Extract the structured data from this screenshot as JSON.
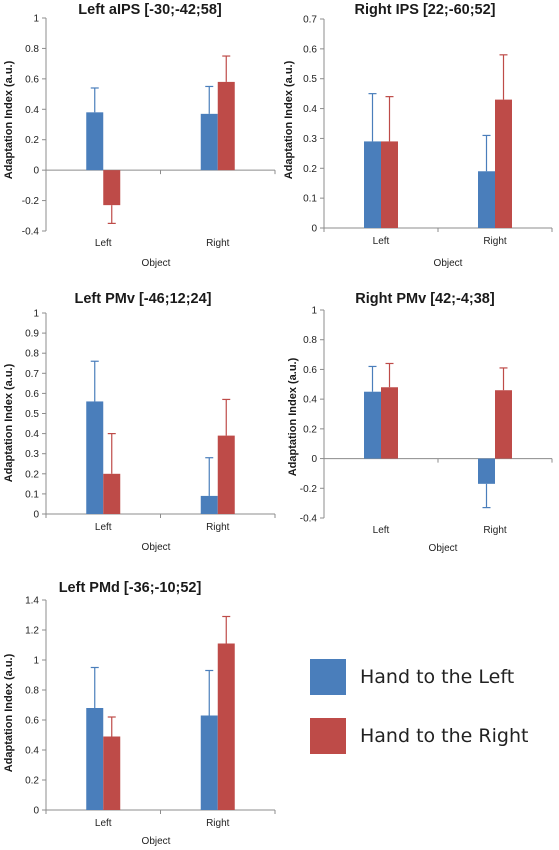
{
  "colors": {
    "left_hand": "#4a7ebb",
    "right_hand": "#be4b48",
    "axis": "#8c8c8c"
  },
  "legend": {
    "items": [
      {
        "label": "Hand to the Left",
        "color": "#4a7ebb"
      },
      {
        "label": "Hand to the Right",
        "color": "#be4b48"
      }
    ]
  },
  "chart_data": [
    {
      "type": "bar",
      "title": "Left aIPS [-30;-42;58]",
      "xlabel": "Object",
      "ylabel": "Adaptation Index (a.u.)",
      "categories": [
        "Left",
        "Right"
      ],
      "ylim": [
        -0.4,
        1
      ],
      "yticks": [
        "-0.4",
        "-0.2",
        "0",
        "0.2",
        "0.4",
        "0.6",
        "0.8",
        "1"
      ],
      "series": [
        {
          "name": "Hand to the Left",
          "values": [
            0.38,
            0.37
          ],
          "errors": [
            0.16,
            0.18
          ]
        },
        {
          "name": "Hand to the Right",
          "values": [
            -0.23,
            0.58
          ],
          "errors": [
            0.12,
            0.17
          ]
        }
      ]
    },
    {
      "type": "bar",
      "title": "Right IPS [22;-60;52]",
      "xlabel": "Object",
      "ylabel": "Adaptation Index (a.u.)",
      "categories": [
        "Left",
        "Right"
      ],
      "ylim": [
        0,
        0.7
      ],
      "yticks": [
        "0",
        "0.1",
        "0.2",
        "0.3",
        "0.4",
        "0.5",
        "0.6",
        "0.7"
      ],
      "series": [
        {
          "name": "Hand to the Left",
          "values": [
            0.29,
            0.19
          ],
          "errors": [
            0.16,
            0.12
          ]
        },
        {
          "name": "Hand to the Right",
          "values": [
            0.29,
            0.43
          ],
          "errors": [
            0.15,
            0.15
          ]
        }
      ]
    },
    {
      "type": "bar",
      "title": "Left PMv [-46;12;24]",
      "xlabel": "Object",
      "ylabel": "Adaptation Index (a.u.)",
      "categories": [
        "Left",
        "Right"
      ],
      "ylim": [
        0,
        1
      ],
      "yticks": [
        "0",
        "0.1",
        "0.2",
        "0.3",
        "0.4",
        "0.5",
        "0.6",
        "0.7",
        "0.8",
        "0.9",
        "1"
      ],
      "series": [
        {
          "name": "Hand to the Left",
          "values": [
            0.56,
            0.09
          ],
          "errors": [
            0.2,
            0.19
          ]
        },
        {
          "name": "Hand to the Right",
          "values": [
            0.2,
            0.39
          ],
          "errors": [
            0.2,
            0.18
          ]
        }
      ]
    },
    {
      "type": "bar",
      "title": "Right PMv [42;-4;38]",
      "xlabel": "Object",
      "ylabel": "Adaptation Index (a.u.)",
      "categories": [
        "Left",
        "Right"
      ],
      "ylim": [
        -0.4,
        1
      ],
      "yticks": [
        "-0.4",
        "-0.2",
        "0",
        "0.2",
        "0.4",
        "0.6",
        "0.8",
        "1"
      ],
      "series": [
        {
          "name": "Hand to the Left",
          "values": [
            0.45,
            -0.17
          ],
          "errors": [
            0.17,
            0.16
          ]
        },
        {
          "name": "Hand to the Right",
          "values": [
            0.48,
            0.46
          ],
          "errors": [
            0.16,
            0.15
          ]
        }
      ]
    },
    {
      "type": "bar",
      "title": "Left PMd [-36;-10;52]",
      "xlabel": "Object",
      "ylabel": "Adaptation Index (a.u.)",
      "categories": [
        "Left",
        "Right"
      ],
      "ylim": [
        0,
        1.4
      ],
      "yticks": [
        "0",
        "0.2",
        "0.4",
        "0.6",
        "0.8",
        "1",
        "1.2",
        "1.4"
      ],
      "series": [
        {
          "name": "Hand to the Left",
          "values": [
            0.68,
            0.63
          ],
          "errors": [
            0.27,
            0.3
          ]
        },
        {
          "name": "Hand to the Right",
          "values": [
            0.49,
            1.11
          ],
          "errors": [
            0.13,
            0.18
          ]
        }
      ]
    }
  ]
}
